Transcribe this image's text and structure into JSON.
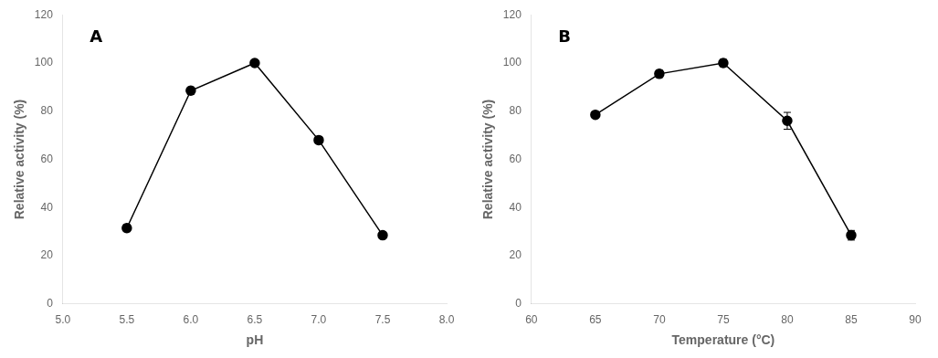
{
  "chart_data": [
    {
      "type": "line",
      "annotation": "A",
      "x": [
        5.5,
        6.0,
        6.5,
        7.0,
        7.5
      ],
      "values": [
        31.5,
        88.5,
        100.0,
        68.0,
        28.5
      ],
      "yerr": [
        1.5,
        1.5,
        1.0,
        1.5,
        1.0
      ],
      "xlabel": "pH",
      "ylabel": "Relative activity (%)",
      "xlim": [
        5.0,
        8.0
      ],
      "ylim": [
        0,
        120
      ],
      "xticks": [
        {
          "value": 5.0,
          "label": "5.0"
        },
        5.5,
        {
          "value": 6.0,
          "label": "6.0"
        },
        6.5,
        {
          "value": 7.0,
          "label": "7.0"
        },
        7.5,
        {
          "value": 8.0,
          "label": "8.0"
        }
      ],
      "yticks": [
        0,
        20,
        40,
        60,
        80,
        100,
        120
      ],
      "color": "black",
      "marker": "circle",
      "grid": false
    },
    {
      "type": "line",
      "annotation": "B",
      "x": [
        65,
        70,
        75,
        80,
        85
      ],
      "values": [
        78.5,
        95.5,
        100.0,
        76.0,
        28.5
      ],
      "yerr": [
        1.0,
        1.5,
        1.5,
        3.5,
        2.0
      ],
      "xlabel": "Temperature (°C)",
      "ylabel": "Relative activity (%)",
      "xlim": [
        60,
        90
      ],
      "ylim": [
        0,
        120
      ],
      "xticks": [
        60,
        65,
        70,
        75,
        80,
        85,
        90
      ],
      "yticks": [
        0,
        20,
        40,
        60,
        80,
        100,
        120
      ],
      "color": "black",
      "marker": "circle",
      "grid": false
    }
  ]
}
